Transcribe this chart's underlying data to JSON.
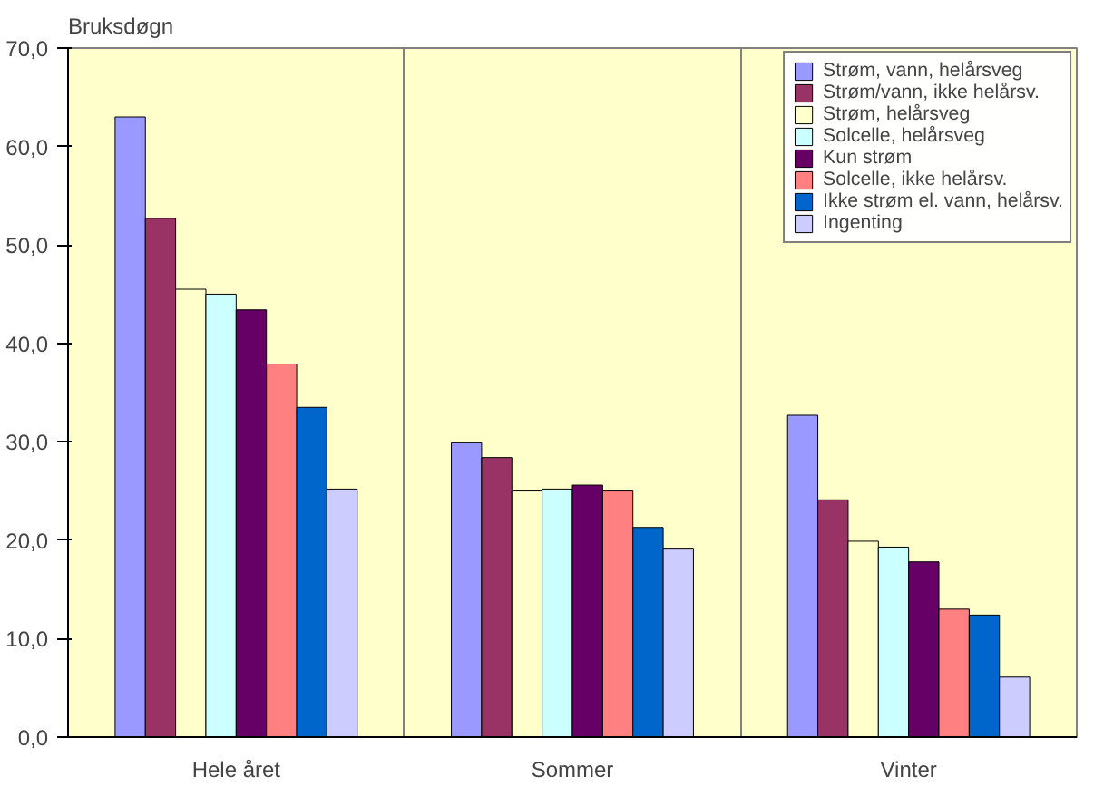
{
  "chart_data": {
    "type": "bar",
    "ylabel": "Bruksdøgn",
    "categories": [
      "Hele året",
      "Sommer",
      "Vinter"
    ],
    "series": [
      {
        "name": "Strøm, vann, helårsveg",
        "color": "#9999ff",
        "values": [
          63.0,
          29.9,
          32.7
        ]
      },
      {
        "name": "Strøm/vann, ikke helårsv.",
        "color": "#993366",
        "values": [
          52.7,
          28.4,
          24.1
        ]
      },
      {
        "name": "Strøm, helårsveg",
        "color": "#ffffcc",
        "values": [
          45.5,
          25.0,
          19.9
        ]
      },
      {
        "name": "Solcelle, helårsveg",
        "color": "#ccffff",
        "values": [
          45.0,
          25.2,
          19.3
        ]
      },
      {
        "name": "Kun strøm",
        "color": "#660066",
        "values": [
          43.4,
          25.6,
          17.8
        ]
      },
      {
        "name": "Solcelle, ikke helårsv.",
        "color": "#ff8080",
        "values": [
          37.9,
          25.0,
          13.0
        ]
      },
      {
        "name": "Ikke strøm el. vann, helårsv.",
        "color": "#0066cc",
        "values": [
          33.5,
          21.3,
          12.4
        ]
      },
      {
        "name": "Ingenting",
        "color": "#ccccff",
        "values": [
          25.2,
          19.1,
          6.1
        ]
      }
    ],
    "ylim": [
      0,
      70
    ],
    "yticks": [
      {
        "value": 0,
        "label": "0,0"
      },
      {
        "value": 10,
        "label": "10,0"
      },
      {
        "value": 20,
        "label": "20,0"
      },
      {
        "value": 30,
        "label": "30,0"
      },
      {
        "value": 40,
        "label": "40,0"
      },
      {
        "value": 50,
        "label": "50,0"
      },
      {
        "value": 60,
        "label": "60,0"
      },
      {
        "value": 70,
        "label": "70,0"
      }
    ],
    "grid": "x",
    "legend": "top right"
  }
}
